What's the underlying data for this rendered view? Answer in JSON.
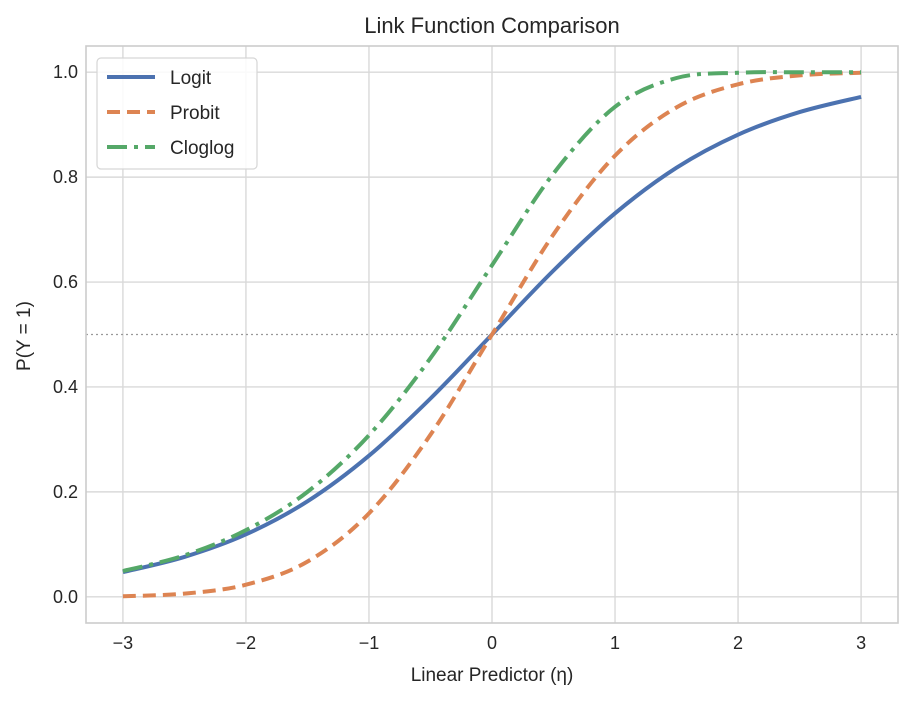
{
  "chart_data": {
    "type": "line",
    "title": "Link Function Comparison",
    "xlabel": "Linear Predictor (η)",
    "ylabel": "P(Y = 1)",
    "xlim": [
      -3.3,
      3.3
    ],
    "ylim": [
      -0.05,
      1.05
    ],
    "xticks": [
      -3,
      -2,
      -1,
      0,
      1,
      2,
      3
    ],
    "xtick_labels": [
      "−3",
      "−2",
      "−1",
      "0",
      "1",
      "2",
      "3"
    ],
    "yticks": [
      0.0,
      0.2,
      0.4,
      0.6,
      0.8,
      1.0
    ],
    "ytick_labels": [
      "0.0",
      "0.2",
      "0.4",
      "0.6",
      "0.8",
      "1.0"
    ],
    "grid": true,
    "legend_position": "upper left",
    "reference_line": {
      "y": 0.5,
      "style": "dotted",
      "color": "#999999"
    },
    "x": [
      -3.0,
      -2.5,
      -2.0,
      -1.5,
      -1.0,
      -0.5,
      0.0,
      0.5,
      1.0,
      1.5,
      2.0,
      2.5,
      3.0
    ],
    "series": [
      {
        "name": "Logit",
        "color": "#4c72b0",
        "style": "solid",
        "values": [
          0.047,
          0.076,
          0.119,
          0.182,
          0.269,
          0.378,
          0.5,
          0.622,
          0.731,
          0.818,
          0.881,
          0.924,
          0.953
        ]
      },
      {
        "name": "Probit",
        "color": "#dd8452",
        "style": "dashed",
        "values": [
          0.001,
          0.006,
          0.023,
          0.067,
          0.159,
          0.309,
          0.5,
          0.691,
          0.841,
          0.933,
          0.977,
          0.994,
          0.999
        ]
      },
      {
        "name": "Cloglog",
        "color": "#55a868",
        "style": "dashdot",
        "values": [
          0.049,
          0.079,
          0.127,
          0.2,
          0.308,
          0.455,
          0.632,
          0.807,
          0.934,
          0.989,
          0.999,
          1.0,
          1.0
        ]
      }
    ]
  }
}
